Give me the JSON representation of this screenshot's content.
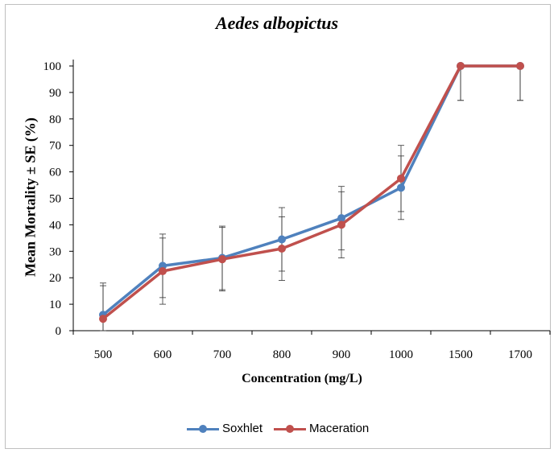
{
  "chart_data": {
    "type": "line",
    "title": "Aedes albopictus",
    "xlabel": "Concentration (mg/L)",
    "ylabel": "Mean Mortality ± SE (%)",
    "categories": [
      "500",
      "600",
      "700",
      "800",
      "900",
      "1000",
      "1500",
      "1700"
    ],
    "ylim": [
      0,
      100
    ],
    "yticks": [
      "0",
      "10",
      "20",
      "30",
      "40",
      "50",
      "60",
      "70",
      "80",
      "90",
      "100"
    ],
    "series": [
      {
        "name": "Soxhlet",
        "color": "#4f81bd",
        "values": [
          6,
          24.5,
          27.5,
          34.5,
          42.5,
          54,
          100,
          100
        ],
        "error": [
          12,
          12,
          12,
          12,
          12,
          12,
          13,
          13
        ]
      },
      {
        "name": "Maceration",
        "color": "#c0504d",
        "values": [
          4.5,
          22.5,
          27,
          31,
          40,
          57.5,
          100,
          100
        ],
        "error": [
          12.5,
          12.5,
          12,
          12,
          12.5,
          12.5,
          13,
          13
        ]
      }
    ],
    "grid": false,
    "legend": "bottom"
  }
}
